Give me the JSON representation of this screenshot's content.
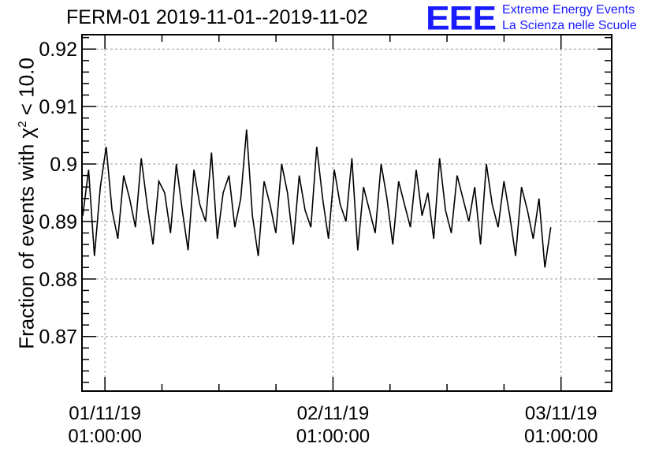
{
  "title": "FERM-01 2019-11-01--2019-11-02",
  "logo": {
    "mark": "EEE",
    "line1": "Extreme Energy Events",
    "line2": "La Scienza nelle Scuole"
  },
  "colors": {
    "logo": "#1a1aff",
    "line": "#000000",
    "grid": "#999999"
  },
  "chart_data": {
    "type": "line",
    "title": "FERM-01 2019-11-01--2019-11-02",
    "xlabel": "",
    "ylabel_prefix": "Fraction of events with ",
    "ylabel_chi": "χ",
    "ylabel_sup": "2",
    "ylabel_suffix": " < 10.0",
    "xlim": [
      "2019-10-31 22:35",
      "2019-11-03 06:20"
    ],
    "ylim": [
      0.8605,
      0.9225
    ],
    "grid": true,
    "x_ticks": [
      {
        "date": "01/11/19",
        "time": "01:00:00"
      },
      {
        "date": "02/11/19",
        "time": "01:00:00"
      },
      {
        "date": "03/11/19",
        "time": "01:00:00"
      }
    ],
    "y_ticks": [
      "0.87",
      "0.88",
      "0.89",
      "0.9",
      "0.91",
      "0.92"
    ],
    "series": [
      {
        "x_start": "2019-10-31 22:40",
        "x_end": "2019-11-02 23:55",
        "values": [
          0.891,
          0.899,
          0.884,
          0.896,
          0.903,
          0.892,
          0.887,
          0.898,
          0.894,
          0.889,
          0.901,
          0.893,
          0.886,
          0.897,
          0.895,
          0.888,
          0.9,
          0.892,
          0.885,
          0.899,
          0.893,
          0.89,
          0.902,
          0.887,
          0.895,
          0.898,
          0.889,
          0.894,
          0.906,
          0.891,
          0.884,
          0.897,
          0.893,
          0.888,
          0.9,
          0.895,
          0.886,
          0.898,
          0.892,
          0.889,
          0.903,
          0.894,
          0.887,
          0.899,
          0.893,
          0.89,
          0.901,
          0.885,
          0.896,
          0.892,
          0.888,
          0.9,
          0.894,
          0.886,
          0.897,
          0.893,
          0.889,
          0.899,
          0.891,
          0.895,
          0.887,
          0.901,
          0.892,
          0.888,
          0.898,
          0.894,
          0.89,
          0.896,
          0.886,
          0.9,
          0.893,
          0.889,
          0.897,
          0.891,
          0.884,
          0.896,
          0.892,
          0.887,
          0.894,
          0.882,
          0.889
        ]
      }
    ]
  }
}
